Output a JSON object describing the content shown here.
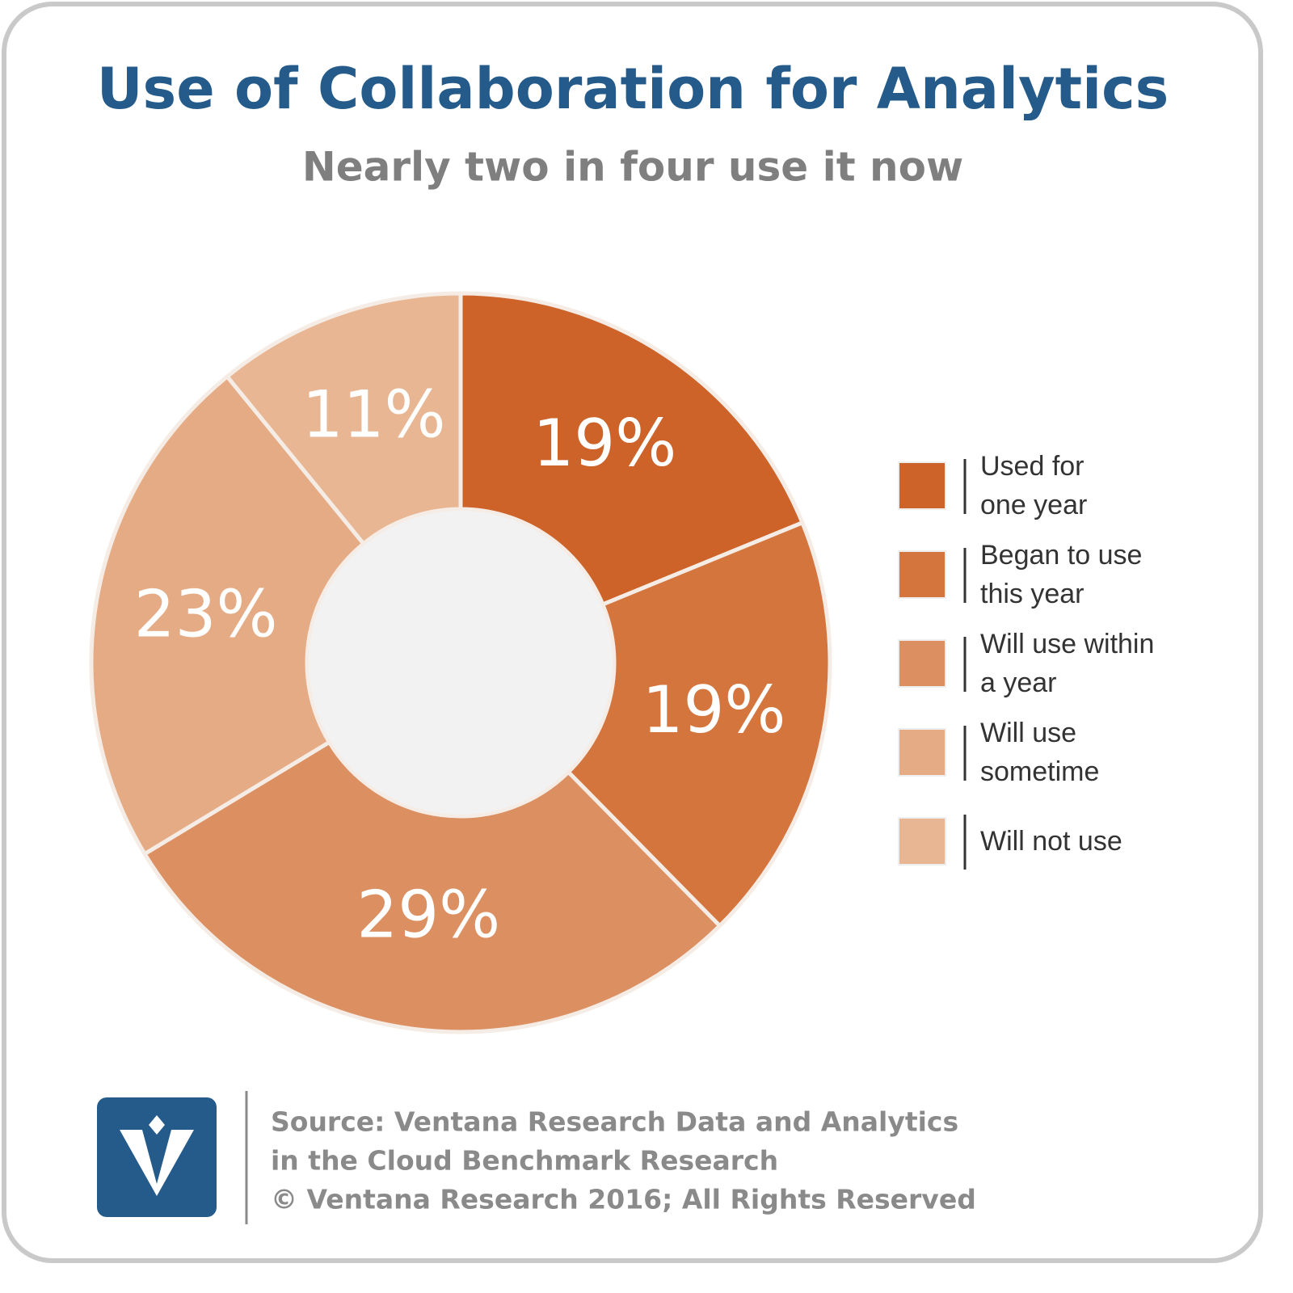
{
  "chart_data": {
    "type": "donut",
    "title": "Use of Collaboration for Analytics",
    "subtitle": "Nearly two in four use it now",
    "categories": [
      "Used for\none year",
      "Began to use\nthis year",
      "Will use within\na year",
      "Will use\nsometime",
      "Will not use"
    ],
    "values": [
      19,
      19,
      29,
      23,
      11
    ],
    "value_labels": [
      "19%",
      "19%",
      "29%",
      "23%",
      "11%"
    ],
    "colors": [
      "#cd6329",
      "#d5753e",
      "#dc8f60",
      "#e5ab85",
      "#e8b692"
    ],
    "legend": "right"
  },
  "footer": {
    "lines": [
      "Source: Ventana Research Data and Analytics",
      "in the Cloud Benchmark Research",
      "© Ventana Research 2016; All Rights Reserved"
    ]
  }
}
